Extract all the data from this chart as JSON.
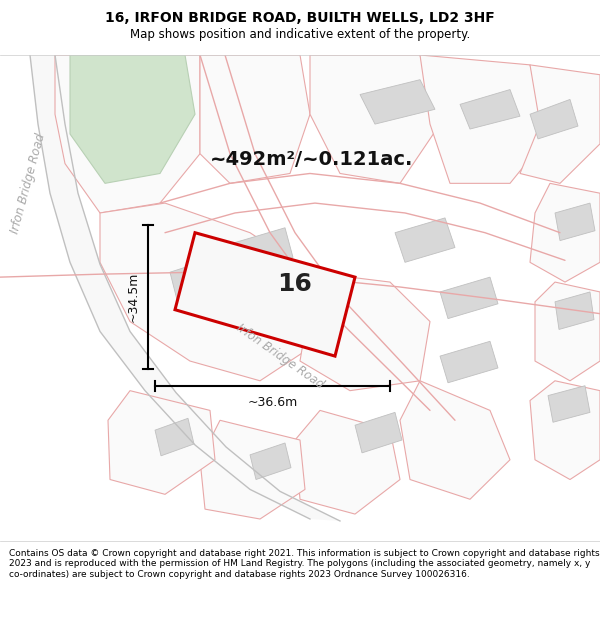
{
  "title": "16, IRFON BRIDGE ROAD, BUILTH WELLS, LD2 3HF",
  "subtitle": "Map shows position and indicative extent of the property.",
  "footer": "Contains OS data © Crown copyright and database right 2021. This information is subject to Crown copyright and database rights 2023 and is reproduced with the permission of HM Land Registry. The polygons (including the associated geometry, namely x, y co-ordinates) are subject to Crown copyright and database rights 2023 Ordnance Survey 100026316.",
  "area_label": "~492m²/~0.121ac.",
  "plot_number": "16",
  "dim_width": "~36.6m",
  "dim_height": "~34.5m",
  "road_label_left": "Irfon Bridge Road",
  "road_label_diag": "Irfon Bridge Road",
  "map_bg": "#ffffff",
  "plot_fill": "#f2f2f2",
  "plot_edge": "#cc0000",
  "parcel_fill": "#f0f0f0",
  "parcel_edge": "#e8a8a8",
  "building_fill": "#d8d8d8",
  "building_edge": "#c0c0c0",
  "green_fill": "#d0e4cc",
  "green_edge": "#b8d0b4",
  "road_line_color": "#e8a8a8",
  "road_label_color": "#aaaaaa",
  "left_road_color": "#c0c0c0",
  "title_fontsize": 10,
  "subtitle_fontsize": 8.5,
  "footer_fontsize": 6.5,
  "area_fontsize": 14,
  "plot_num_fontsize": 18,
  "dim_fontsize": 9,
  "road_label_fontsize": 8.5
}
